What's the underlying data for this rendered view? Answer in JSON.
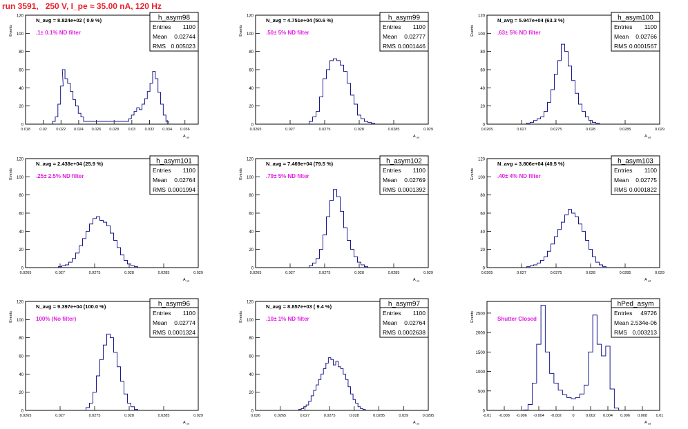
{
  "title": "run 3591,   250 V, I_pe ≈ 35.00 nA, 120 Hz",
  "colors": {
    "title": "#e8202a",
    "histogram": "#1a1a8c",
    "note": "#e020e0",
    "axis": "#000000"
  },
  "stats_labels": {
    "entries": "Entries",
    "mean": "Mean",
    "rms": "RMS"
  },
  "ylabel": "Events",
  "xlabel": "A_{ud}",
  "chart_data": [
    {
      "type": "bar",
      "name": "h_asym98",
      "nbar_label": "N_avg = 8.824e+02 ( 0.9 %)",
      "note": ".1± 0.1% ND filter",
      "entries": "1100",
      "mean": "0.02744",
      "rms": "0.005023",
      "xlim": [
        0.018,
        0.0375
      ],
      "ylim": [
        0,
        120
      ],
      "xticks": [
        0.018,
        0.02,
        0.022,
        0.024,
        0.026,
        0.028,
        0.03,
        0.032,
        0.034,
        0.036
      ],
      "xtick_labels": [
        "0.018",
        "0.02",
        "0.022",
        "0.024",
        "0.026",
        "0.028",
        "0.03",
        "0.032",
        "0.034",
        "0.036"
      ],
      "yticks": [
        0,
        20,
        40,
        60,
        80,
        100,
        120
      ],
      "x": [
        0.0212,
        0.0215,
        0.0218,
        0.0221,
        0.0223,
        0.0226,
        0.0229,
        0.0232,
        0.0235,
        0.0238,
        0.0241,
        0.0244,
        0.0247,
        0.0295,
        0.0298,
        0.0301,
        0.0304,
        0.0307,
        0.031,
        0.0313,
        0.0316,
        0.0319,
        0.0322,
        0.0325,
        0.0328,
        0.0331,
        0.0334,
        0.0337,
        0.034
      ],
      "values": [
        3,
        8,
        22,
        42,
        60,
        50,
        45,
        36,
        27,
        20,
        12,
        8,
        3,
        3,
        6,
        10,
        14,
        18,
        16,
        22,
        28,
        36,
        45,
        58,
        50,
        35,
        22,
        10,
        3
      ]
    },
    {
      "type": "bar",
      "name": "h_asym99",
      "nbar_label": "N_avg = 4.751e+04 (50.6 %)",
      "note": ".50± 5% ND filter",
      "entries": "1100",
      "mean": "0.02777",
      "rms": "0.0001446",
      "xlim": [
        0.0265,
        0.029
      ],
      "ylim": [
        0,
        120
      ],
      "xticks": [
        0.0265,
        0.027,
        0.0275,
        0.028,
        0.0285,
        0.029
      ],
      "xtick_labels": [
        "0.0265",
        "0.027",
        "0.0275",
        "0.028",
        "0.0285",
        "0.029"
      ],
      "yticks": [
        0,
        20,
        40,
        60,
        80,
        100,
        120
      ],
      "x": [
        0.0273,
        0.02735,
        0.0274,
        0.02745,
        0.0275,
        0.02755,
        0.0276,
        0.02765,
        0.0277,
        0.02775,
        0.0278,
        0.02785,
        0.0279,
        0.02795,
        0.028,
        0.02805,
        0.0281,
        0.02815,
        0.0282
      ],
      "values": [
        3,
        8,
        14,
        30,
        50,
        60,
        70,
        72,
        70,
        65,
        58,
        45,
        32,
        22,
        10,
        6,
        3,
        2,
        1
      ]
    },
    {
      "type": "bar",
      "name": "h_asym100",
      "nbar_label": "N_avg = 5.947e+04 (63.3 %)",
      "note": ".63± 5% ND filter",
      "entries": "1100",
      "mean": "0.02766",
      "rms": "0.0001567",
      "xlim": [
        0.0265,
        0.029
      ],
      "ylim": [
        0,
        120
      ],
      "xticks": [
        0.0265,
        0.027,
        0.0275,
        0.028,
        0.0285,
        0.029
      ],
      "xtick_labels": [
        "0.0265",
        "0.027",
        "0.0275",
        "0.028",
        "0.0285",
        "0.029"
      ],
      "yticks": [
        0,
        20,
        40,
        60,
        80,
        100,
        120
      ],
      "x": [
        0.0271,
        0.02715,
        0.0272,
        0.02725,
        0.0273,
        0.02735,
        0.0274,
        0.02745,
        0.0275,
        0.02755,
        0.0276,
        0.02765,
        0.0277,
        0.02775,
        0.0278,
        0.02785,
        0.0279,
        0.02795,
        0.028,
        0.02805,
        0.0281
      ],
      "values": [
        1,
        2,
        4,
        6,
        8,
        14,
        24,
        38,
        55,
        70,
        88,
        80,
        64,
        48,
        34,
        22,
        14,
        8,
        4,
        2,
        1
      ]
    },
    {
      "type": "bar",
      "name": "h_asym101",
      "nbar_label": "N_avg = 2.438e+04 (25.9 %)",
      "note": ".25± 2.5% ND filter",
      "entries": "1100",
      "mean": "0.02764",
      "rms": "0.0001994",
      "xlim": [
        0.0265,
        0.029
      ],
      "ylim": [
        0,
        120
      ],
      "xticks": [
        0.0265,
        0.027,
        0.0275,
        0.028,
        0.0285,
        0.029
      ],
      "xtick_labels": [
        "0.0265",
        "0.027",
        "0.0275",
        "0.028",
        "0.0285",
        "0.029"
      ],
      "yticks": [
        0,
        20,
        40,
        60,
        80,
        100,
        120
      ],
      "x": [
        0.027,
        0.02705,
        0.0271,
        0.02715,
        0.0272,
        0.02725,
        0.0273,
        0.02735,
        0.0274,
        0.02745,
        0.0275,
        0.02755,
        0.0276,
        0.02765,
        0.0277,
        0.02775,
        0.0278,
        0.02785,
        0.0279,
        0.02795,
        0.028,
        0.02805,
        0.0281
      ],
      "values": [
        1,
        2,
        3,
        6,
        10,
        16,
        24,
        32,
        40,
        48,
        54,
        56,
        52,
        50,
        46,
        38,
        30,
        22,
        14,
        8,
        4,
        2,
        1
      ]
    },
    {
      "type": "bar",
      "name": "h_asym102",
      "nbar_label": "N_avg = 7.469e+04 (79.5 %)",
      "note": ".79± 5% ND filter",
      "entries": "1100",
      "mean": "0.02769",
      "rms": "0.0001392",
      "xlim": [
        0.0265,
        0.029
      ],
      "ylim": [
        0,
        120
      ],
      "xticks": [
        0.0265,
        0.027,
        0.0275,
        0.028,
        0.0285,
        0.029
      ],
      "xtick_labels": [
        "0.0265",
        "0.027",
        "0.0275",
        "0.028",
        "0.0285",
        "0.029"
      ],
      "yticks": [
        0,
        20,
        40,
        60,
        80,
        100,
        120
      ],
      "x": [
        0.0273,
        0.02735,
        0.0274,
        0.02745,
        0.0275,
        0.02755,
        0.0276,
        0.02765,
        0.0277,
        0.02775,
        0.0278,
        0.02785,
        0.0279,
        0.02795,
        0.028,
        0.02805,
        0.0281
      ],
      "values": [
        2,
        5,
        10,
        20,
        36,
        56,
        74,
        86,
        78,
        62,
        44,
        30,
        20,
        12,
        6,
        3,
        1
      ]
    },
    {
      "type": "bar",
      "name": "h_asym103",
      "nbar_label": "N_avg = 3.806e+04 (40.5 %)",
      "note": ".40± 4% ND filter",
      "entries": "1100",
      "mean": "0.02775",
      "rms": "0.0001822",
      "xlim": [
        0.0265,
        0.029
      ],
      "ylim": [
        0,
        120
      ],
      "xticks": [
        0.0265,
        0.027,
        0.0275,
        0.028,
        0.0285,
        0.029
      ],
      "xtick_labels": [
        "0.0265",
        "0.027",
        "0.0275",
        "0.028",
        "0.0285",
        "0.029"
      ],
      "yticks": [
        0,
        20,
        40,
        60,
        80,
        100,
        120
      ],
      "x": [
        0.0271,
        0.02715,
        0.0272,
        0.02725,
        0.0273,
        0.02735,
        0.0274,
        0.02745,
        0.0275,
        0.02755,
        0.0276,
        0.02765,
        0.0277,
        0.02775,
        0.0278,
        0.02785,
        0.0279,
        0.02795,
        0.028,
        0.02805,
        0.0281,
        0.02815,
        0.0282
      ],
      "values": [
        1,
        2,
        3,
        5,
        8,
        12,
        18,
        26,
        34,
        42,
        50,
        58,
        64,
        60,
        56,
        48,
        40,
        30,
        20,
        12,
        6,
        3,
        1
      ]
    },
    {
      "type": "bar",
      "name": "h_asym96",
      "nbar_label": "N_avg = 9.397e+04 (100.0 %)",
      "note": "100% (No filter)",
      "entries": "1100",
      "mean": "0.02774",
      "rms": "0.0001324",
      "xlim": [
        0.0265,
        0.029
      ],
      "ylim": [
        0,
        120
      ],
      "xticks": [
        0.0265,
        0.027,
        0.0275,
        0.028,
        0.0285,
        0.029
      ],
      "xtick_labels": [
        "0.0265",
        "0.027",
        "0.0275",
        "0.028",
        "0.0285",
        "0.029"
      ],
      "yticks": [
        0,
        20,
        40,
        60,
        80,
        100,
        120
      ],
      "x": [
        0.0274,
        0.02745,
        0.0275,
        0.02755,
        0.0276,
        0.02765,
        0.0277,
        0.02775,
        0.0278,
        0.02785,
        0.0279,
        0.02795,
        0.028,
        0.02805,
        0.0281
      ],
      "values": [
        3,
        8,
        20,
        38,
        56,
        72,
        84,
        80,
        64,
        48,
        32,
        18,
        8,
        4,
        1
      ]
    },
    {
      "type": "bar",
      "name": "h_asym97",
      "nbar_label": "N_avg = 8.857e+03 ( 9.4 %)",
      "note": ".10± 1% ND filter",
      "entries": "1100",
      "mean": "0.02764",
      "rms": "0.0002638",
      "xlim": [
        0.026,
        0.0295
      ],
      "ylim": [
        0,
        120
      ],
      "xticks": [
        0.026,
        0.0265,
        0.027,
        0.0275,
        0.028,
        0.0285,
        0.029,
        0.0295
      ],
      "xtick_labels": [
        "0.026",
        "0.0265",
        "0.027",
        "0.0275",
        "0.028",
        "0.0285",
        "0.029",
        "0.0295"
      ],
      "yticks": [
        0,
        20,
        40,
        60,
        80,
        100,
        120
      ],
      "x": [
        0.0269,
        0.02695,
        0.027,
        0.02705,
        0.0271,
        0.02715,
        0.0272,
        0.02725,
        0.0273,
        0.02735,
        0.0274,
        0.02745,
        0.0275,
        0.02755,
        0.0276,
        0.02765,
        0.0277,
        0.02775,
        0.0278,
        0.02785,
        0.0279,
        0.02795,
        0.028,
        0.02805,
        0.0281,
        0.02815,
        0.0282
      ],
      "values": [
        1,
        2,
        4,
        6,
        10,
        16,
        22,
        28,
        34,
        40,
        46,
        52,
        58,
        56,
        50,
        54,
        48,
        46,
        40,
        34,
        26,
        18,
        12,
        8,
        4,
        2,
        1
      ]
    },
    {
      "type": "bar",
      "name": "hPed_asym",
      "nbar_label": "",
      "note": "Shutter Closed",
      "entries": "49726",
      "mean": "2.534e-06",
      "rms": "0.003213",
      "xlim": [
        -0.01,
        0.01
      ],
      "ylim": [
        0,
        2800
      ],
      "xticks": [
        -0.01,
        -0.008,
        -0.006,
        -0.004,
        -0.002,
        0,
        0.002,
        0.004,
        0.006,
        0.008,
        0.01
      ],
      "xtick_labels": [
        "-0.01",
        "-0.008",
        "-0.006",
        "-0.004",
        "-0.002",
        "0",
        "0.002",
        "0.004",
        "0.006",
        "0.008",
        "0.01"
      ],
      "yticks": [
        0,
        500,
        1000,
        1500,
        2000,
        2500
      ],
      "x": [
        -0.0055,
        -0.005,
        -0.0045,
        -0.004,
        -0.0035,
        -0.003,
        -0.0025,
        -0.002,
        -0.0015,
        -0.001,
        -0.0005,
        0,
        0.0005,
        0.001,
        0.0015,
        0.002,
        0.0025,
        0.003,
        0.0035,
        0.004,
        0.0045,
        0.005
      ],
      "values": [
        10,
        150,
        700,
        1700,
        2700,
        1500,
        950,
        700,
        520,
        400,
        330,
        300,
        330,
        420,
        650,
        1500,
        2450,
        1700,
        1400,
        1650,
        550,
        60
      ]
    }
  ]
}
